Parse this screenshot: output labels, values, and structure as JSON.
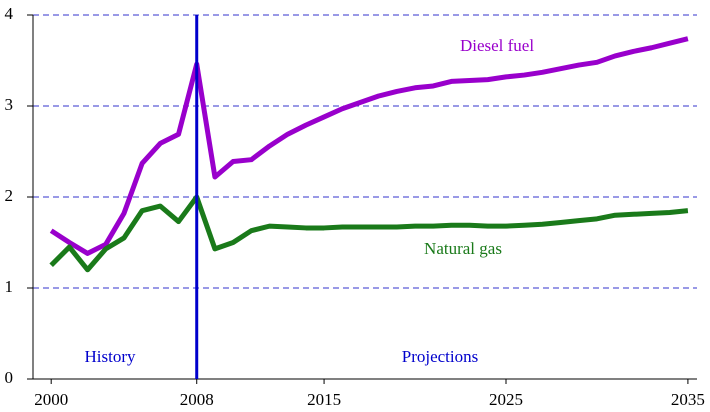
{
  "chart_data": {
    "type": "line",
    "x": [
      2000,
      2001,
      2002,
      2003,
      2004,
      2005,
      2006,
      2007,
      2008,
      2009,
      2010,
      2011,
      2012,
      2013,
      2014,
      2015,
      2016,
      2017,
      2018,
      2019,
      2020,
      2021,
      2022,
      2023,
      2024,
      2025,
      2026,
      2027,
      2028,
      2029,
      2030,
      2031,
      2032,
      2033,
      2034,
      2035
    ],
    "series": [
      {
        "name": "Diesel fuel",
        "color": "#9900cc",
        "values": [
          1.63,
          1.5,
          1.38,
          1.48,
          1.82,
          2.37,
          2.59,
          2.69,
          3.46,
          2.22,
          2.39,
          2.41,
          2.56,
          2.69,
          2.79,
          2.88,
          2.97,
          3.04,
          3.11,
          3.16,
          3.2,
          3.22,
          3.27,
          3.28,
          3.29,
          3.32,
          3.34,
          3.37,
          3.41,
          3.45,
          3.48,
          3.55,
          3.6,
          3.64,
          3.69,
          3.74
        ]
      },
      {
        "name": "Natural gas",
        "color": "#1a7a1a",
        "values": [
          1.25,
          1.45,
          1.2,
          1.43,
          1.55,
          1.85,
          1.9,
          1.73,
          2.0,
          1.43,
          1.5,
          1.63,
          1.68,
          1.67,
          1.66,
          1.66,
          1.67,
          1.67,
          1.67,
          1.67,
          1.68,
          1.68,
          1.69,
          1.69,
          1.68,
          1.68,
          1.69,
          1.7,
          1.72,
          1.74,
          1.76,
          1.8,
          1.81,
          1.82,
          1.83,
          1.85
        ]
      }
    ],
    "annotations": [
      "History",
      "Projections"
    ],
    "divider": 2008,
    "xlim": [
      1999,
      2035.5
    ],
    "xticks": [
      2000,
      2008,
      2015,
      2025,
      2035
    ],
    "ylim": [
      0,
      4
    ],
    "yticks": [
      0,
      1,
      2,
      3,
      4
    ],
    "grid": true
  }
}
